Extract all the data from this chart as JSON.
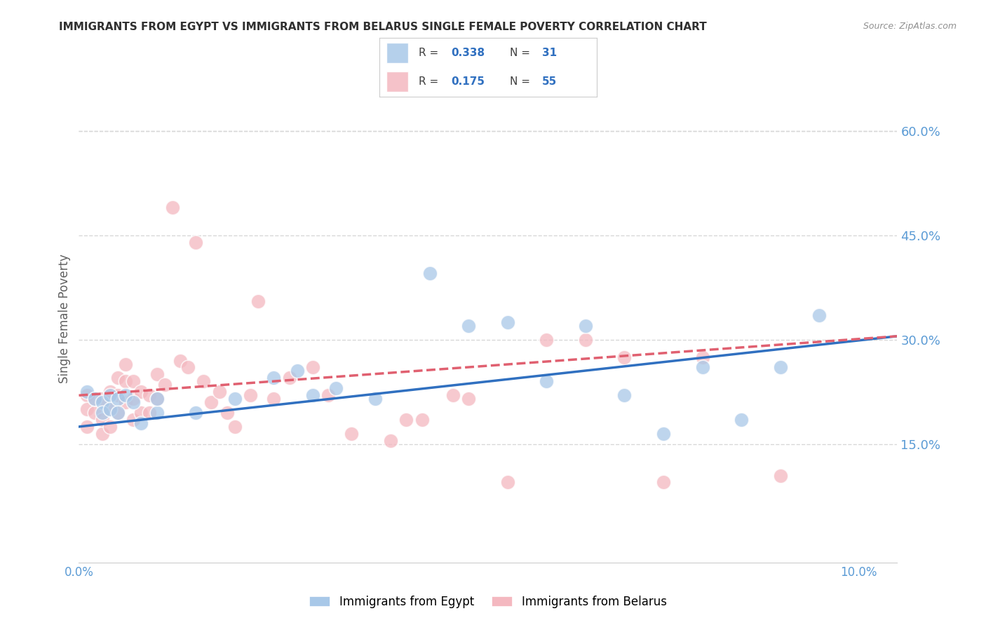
{
  "title": "IMMIGRANTS FROM EGYPT VS IMMIGRANTS FROM BELARUS SINGLE FEMALE POVERTY CORRELATION CHART",
  "source": "Source: ZipAtlas.com",
  "ylabel": "Single Female Poverty",
  "xlim": [
    0.0,
    0.105
  ],
  "ylim": [
    -0.02,
    0.68
  ],
  "egypt_color": "#a8c8e8",
  "egypt_edge_color": "#7bafd4",
  "belarus_color": "#f4b8c0",
  "belarus_edge_color": "#e87888",
  "egypt_line_color": "#3070c0",
  "belarus_line_color": "#e06070",
  "egypt_R": 0.338,
  "egypt_N": 31,
  "belarus_R": 0.175,
  "belarus_N": 55,
  "egypt_scatter_x": [
    0.001,
    0.002,
    0.003,
    0.003,
    0.004,
    0.004,
    0.005,
    0.005,
    0.006,
    0.007,
    0.008,
    0.01,
    0.01,
    0.015,
    0.02,
    0.025,
    0.028,
    0.03,
    0.033,
    0.038,
    0.045,
    0.05,
    0.055,
    0.06,
    0.065,
    0.07,
    0.075,
    0.08,
    0.085,
    0.09,
    0.095
  ],
  "egypt_scatter_y": [
    0.225,
    0.215,
    0.21,
    0.195,
    0.22,
    0.2,
    0.215,
    0.195,
    0.22,
    0.21,
    0.18,
    0.195,
    0.215,
    0.195,
    0.215,
    0.245,
    0.255,
    0.22,
    0.23,
    0.215,
    0.395,
    0.32,
    0.325,
    0.24,
    0.32,
    0.22,
    0.165,
    0.26,
    0.185,
    0.26,
    0.335
  ],
  "belarus_scatter_x": [
    0.001,
    0.001,
    0.001,
    0.002,
    0.002,
    0.003,
    0.003,
    0.003,
    0.004,
    0.004,
    0.004,
    0.005,
    0.005,
    0.005,
    0.006,
    0.006,
    0.006,
    0.007,
    0.007,
    0.007,
    0.008,
    0.008,
    0.009,
    0.009,
    0.01,
    0.01,
    0.011,
    0.012,
    0.013,
    0.014,
    0.015,
    0.016,
    0.017,
    0.018,
    0.019,
    0.02,
    0.022,
    0.023,
    0.025,
    0.027,
    0.03,
    0.032,
    0.035,
    0.04,
    0.042,
    0.044,
    0.048,
    0.05,
    0.055,
    0.06,
    0.065,
    0.07,
    0.075,
    0.08,
    0.09
  ],
  "belarus_scatter_y": [
    0.22,
    0.2,
    0.175,
    0.195,
    0.215,
    0.165,
    0.185,
    0.215,
    0.2,
    0.225,
    0.175,
    0.245,
    0.22,
    0.195,
    0.21,
    0.24,
    0.265,
    0.185,
    0.215,
    0.24,
    0.225,
    0.195,
    0.195,
    0.22,
    0.215,
    0.25,
    0.235,
    0.49,
    0.27,
    0.26,
    0.44,
    0.24,
    0.21,
    0.225,
    0.195,
    0.175,
    0.22,
    0.355,
    0.215,
    0.245,
    0.26,
    0.22,
    0.165,
    0.155,
    0.185,
    0.185,
    0.22,
    0.215,
    0.095,
    0.3,
    0.3,
    0.275,
    0.095,
    0.275,
    0.105
  ],
  "egypt_line_x0": 0.0,
  "egypt_line_y0": 0.175,
  "egypt_line_x1": 0.105,
  "egypt_line_y1": 0.305,
  "belarus_line_x0": 0.0,
  "belarus_line_y0": 0.22,
  "belarus_line_x1": 0.105,
  "belarus_line_y1": 0.305,
  "background_color": "#ffffff",
  "grid_color": "#d8d8d8",
  "title_fontsize": 11,
  "axis_label_color": "#5b9bd5",
  "ytick_values": [
    0.15,
    0.3,
    0.45,
    0.6
  ],
  "ytick_labels": [
    "15.0%",
    "30.0%",
    "45.0%",
    "60.0%"
  ],
  "xtick_values": [
    0.0,
    0.05,
    0.1
  ],
  "xtick_labels": [
    "0.0%",
    "",
    "10.0%"
  ]
}
